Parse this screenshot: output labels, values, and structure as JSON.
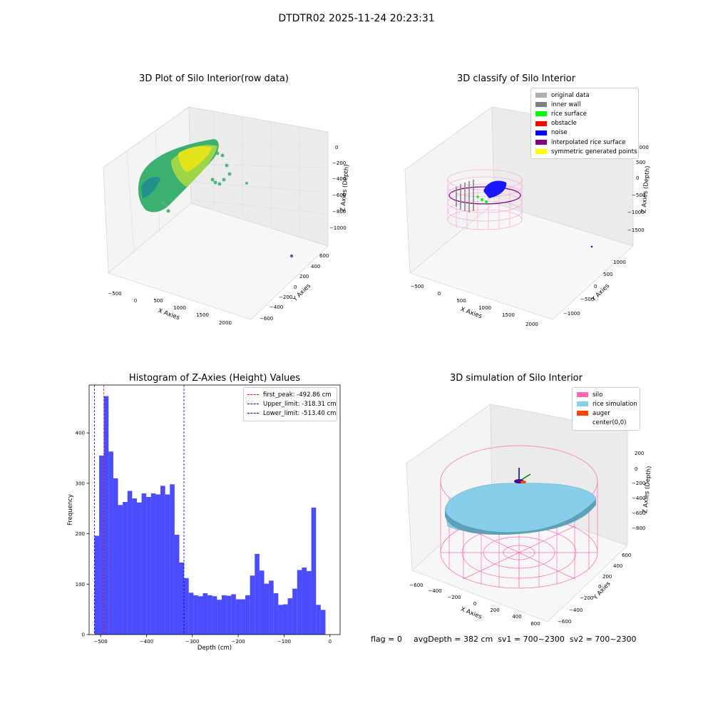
{
  "suptitle": "DTDTR02 2025-11-24 20:23:31",
  "panel_raw": {
    "title": "3D Plot of Silo Interior(row data)",
    "xlabel": "X Axies",
    "ylabel": "Y Axies",
    "zlabel": "Z Axies (Depth)",
    "xticks": [
      "−500",
      "0",
      "500",
      "1000",
      "1500",
      "2000"
    ],
    "yticks": [
      "600",
      "400",
      "200",
      "0",
      "−200",
      "−400",
      "−600"
    ],
    "zticks": [
      "0",
      "−200",
      "−400",
      "−600",
      "−800",
      "−1000"
    ]
  },
  "panel_classify": {
    "title": "3D classify of Silo Interior",
    "xlabel": "X Axies",
    "ylabel": "Y Axies",
    "zlabel": "Z Axies (Depth)",
    "xticks": [
      "−500",
      "0",
      "500",
      "1000",
      "1500",
      "2000"
    ],
    "yticks": [
      "1000",
      "500",
      "0",
      "−500",
      "−1000"
    ],
    "zticks": [
      "1000",
      "500",
      "0",
      "−500",
      "−1000",
      "−1500"
    ],
    "legend": [
      {
        "label": "original data",
        "color": "#b0b0b0"
      },
      {
        "label": "inner wall",
        "color": "#808080"
      },
      {
        "label": "rice surface",
        "color": "#00ff00"
      },
      {
        "label": "obstacle",
        "color": "#ff0000"
      },
      {
        "label": "noise",
        "color": "#0000ff"
      },
      {
        "label": "interpolated rice surface",
        "color": "#800080"
      },
      {
        "label": "symmetric generated points",
        "color": "#ffff00"
      }
    ]
  },
  "panel_sim": {
    "title": "3D simulation of Silo Interior",
    "xlabel": "X Axies",
    "ylabel": "Y Axies",
    "zlabel": "Z Axies (Depth)",
    "xticks": [
      "−600",
      "−400",
      "−200",
      "0",
      "200",
      "400",
      "600"
    ],
    "yticks": [
      "600",
      "400",
      "200",
      "0",
      "−200",
      "−400",
      "−600"
    ],
    "zticks": [
      "200",
      "0",
      "−200",
      "−400",
      "−600",
      "−800"
    ],
    "legend": [
      {
        "label": "silo",
        "color": "#ff69b4"
      },
      {
        "label": "rice simulation",
        "color": "#87ceeb"
      },
      {
        "label": "auger",
        "color": "#ff4500"
      },
      {
        "label": "center(0,0)",
        "color": "#ffffff"
      }
    ]
  },
  "footer": {
    "flag": "flag = 0",
    "avg": "avgDepth = 382 cm  sv1 = 700~2300  sv2 = 700~2300"
  },
  "chart_data": {
    "type": "bar",
    "title": "Histogram of Z-Axies (Height) Values",
    "xlabel": "Depth (cm)",
    "ylabel": "Frequency",
    "xlim": [
      -525,
      22
    ],
    "ylim": [
      0,
      495
    ],
    "bar_color": "#0000ff",
    "bin_width": 10.275,
    "bin_start": -513.4,
    "values": [
      196,
      355,
      473,
      363,
      310,
      257,
      263,
      285,
      270,
      262,
      280,
      273,
      280,
      278,
      295,
      278,
      298,
      198,
      143,
      112,
      83,
      78,
      76,
      82,
      78,
      76,
      69,
      78,
      77,
      80,
      70,
      70,
      78,
      117,
      160,
      127,
      101,
      107,
      82,
      59,
      60,
      72,
      91,
      128,
      133,
      126,
      252,
      59,
      49
    ],
    "xticks": [
      -500,
      -400,
      -300,
      -200,
      -100,
      0
    ],
    "xtick_labels": [
      "−500",
      "−400",
      "−300",
      "−200",
      "−100",
      "0"
    ],
    "yticks": [
      0,
      100,
      200,
      300,
      400
    ],
    "ytick_labels": [
      "0",
      "100",
      "200",
      "300",
      "400"
    ],
    "vlines": [
      {
        "label": "first_peak: -492.86 cm",
        "value": -492.86,
        "color": "#ff0000"
      },
      {
        "label": "Upper_limit: -318.31 cm",
        "value": -318.31,
        "color": "#0000aa"
      },
      {
        "label": "Lower_limit: -513.40 cm",
        "value": -513.4,
        "color": "#0000aa"
      }
    ]
  }
}
